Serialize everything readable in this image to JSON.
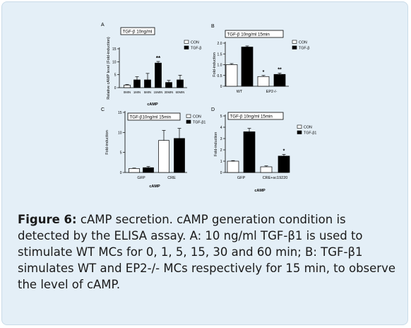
{
  "caption": {
    "label": "Figure 6:",
    "text": " cAMP secretion. cAMP generation condition is detected by the ELISA assay. A: 10 ng/ml TGF-β1 is used to stimulate WT MCs for 0, 1, 5, 15, 30 and 60 min; B: TGF-β1 simulates WT and EP2-/- MCs respectively for 15 min, to observe the level of cAMP."
  },
  "chart_data": [
    {
      "panel": "A",
      "type": "bar",
      "box_label": "TGF-β 10ng/ml",
      "xlabel": "cAMP",
      "ylabel": "Relative cAMP level (Fold-induction)",
      "ylim": [
        0,
        15
      ],
      "yticks": [
        0,
        5,
        10,
        15
      ],
      "categories": [
        "0MIN",
        "1MIN",
        "5MIN",
        "15MIN",
        "30MIN",
        "60MIN"
      ],
      "values": [
        1,
        3,
        3,
        9.5,
        2,
        3
      ],
      "errors": [
        0.2,
        1.2,
        2.5,
        0.6,
        0.8,
        1.8
      ],
      "bar_colors": [
        "#ffffff",
        "#000000",
        "#000000",
        "#000000",
        "#000000",
        "#000000"
      ],
      "annotations": [
        {
          "index": 3,
          "text": "**"
        }
      ],
      "legend": [
        {
          "name": "CON",
          "color": "#ffffff"
        },
        {
          "name": "TGF-β",
          "color": "#000000"
        }
      ],
      "legend_position": "top-right"
    },
    {
      "panel": "B",
      "type": "bar",
      "box_label": "TGF-β 10ng/ml 15min",
      "xlabel": "",
      "ylabel": "Fold-induction",
      "ylim": [
        0,
        2.0
      ],
      "yticks": [
        0,
        0.5,
        1.0,
        1.5,
        2.0
      ],
      "ytick_labels": [
        "0",
        "0.5",
        "1.0",
        "1.5",
        "2.0"
      ],
      "categories": [
        "WT",
        "EP2-/-"
      ],
      "series": [
        {
          "name": "CON",
          "color": "#ffffff",
          "values": [
            1.0,
            0.45
          ],
          "errors": [
            0.05,
            0.05
          ]
        },
        {
          "name": "TGF-β",
          "color": "#000000",
          "values": [
            1.82,
            0.55
          ],
          "errors": [
            0.05,
            0.06
          ]
        }
      ],
      "annotations": [
        {
          "category": 1,
          "series": 0,
          "text": "*"
        },
        {
          "category": 1,
          "series": 1,
          "text": "**"
        }
      ],
      "legend_position": "top-right"
    },
    {
      "panel": "C",
      "type": "bar",
      "box_label": "TGF-β10ng/ml 15min",
      "xlabel": "cAMP",
      "ylabel": "Fold-induction",
      "ylim": [
        0,
        15
      ],
      "yticks": [
        0,
        5,
        10,
        15
      ],
      "categories": [
        "GFP",
        "CRE"
      ],
      "series": [
        {
          "name": "CON",
          "color": "#ffffff",
          "values": [
            1,
            8
          ],
          "errors": [
            0.1,
            2.5
          ]
        },
        {
          "name": "TGF-β1",
          "color": "#000000",
          "values": [
            1.2,
            8.5
          ],
          "errors": [
            0.3,
            2.5
          ]
        }
      ],
      "legend_position": "top-right"
    },
    {
      "panel": "D",
      "type": "bar",
      "box_label": "TGF-β 10ng/ml 15min",
      "xlabel": "cAMP",
      "ylabel": "Fold-induction",
      "ylim": [
        0,
        5
      ],
      "yticks": [
        0,
        1,
        2,
        3,
        4,
        5
      ],
      "categories": [
        "GFP",
        "CRE+sc19220"
      ],
      "series": [
        {
          "name": "CON",
          "color": "#ffffff",
          "values": [
            1,
            0.5
          ],
          "errors": [
            0.05,
            0.08
          ]
        },
        {
          "name": "TGF-β1",
          "color": "#000000",
          "values": [
            3.6,
            1.45
          ],
          "errors": [
            0.3,
            0.15
          ]
        }
      ],
      "annotations": [
        {
          "category": 1,
          "series": 1,
          "text": "*"
        }
      ],
      "legend_position": "top-right"
    }
  ]
}
